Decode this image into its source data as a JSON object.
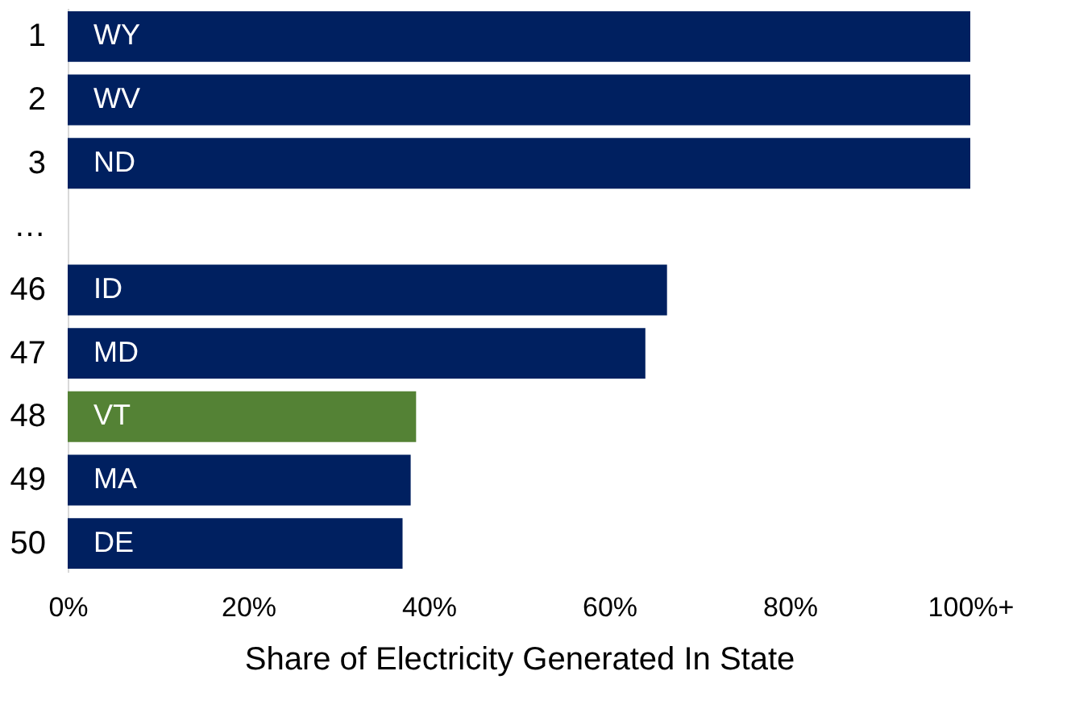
{
  "chart_data": {
    "type": "bar",
    "orientation": "horizontal",
    "xlabel": "Share of Electricity Generated In State",
    "categories": [
      "1",
      "2",
      "3",
      "…",
      "46",
      "47",
      "48",
      "49",
      "50"
    ],
    "values": [
      100,
      100,
      100,
      null,
      66.4,
      64.0,
      38.6,
      38.0,
      37.1
    ],
    "colors": [
      "#002060",
      "#002060",
      "#002060",
      "#002060",
      "#002060",
      "#002060",
      "#548235",
      "#002060",
      "#002060"
    ],
    "xlim": [
      0,
      100
    ],
    "xticks": [
      {
        "value": 0,
        "label": "0%"
      },
      {
        "value": 20,
        "label": "20%"
      },
      {
        "value": 40,
        "label": "40%"
      },
      {
        "value": 60,
        "label": "60%"
      },
      {
        "value": 80,
        "label": "80%"
      },
      {
        "value": 100,
        "label": "100%+"
      }
    ],
    "annotations": [
      {
        "text": "WY",
        "y": "1"
      },
      {
        "text": "WV",
        "y": "2"
      },
      {
        "text": "ND",
        "y": "3"
      },
      {
        "text": "ID",
        "y": "46"
      },
      {
        "text": "MD",
        "y": "47"
      },
      {
        "text": "VT",
        "y": "48"
      },
      {
        "text": "MA",
        "y": "49"
      },
      {
        "text": "DE",
        "y": "50"
      }
    ],
    "grid": false
  }
}
